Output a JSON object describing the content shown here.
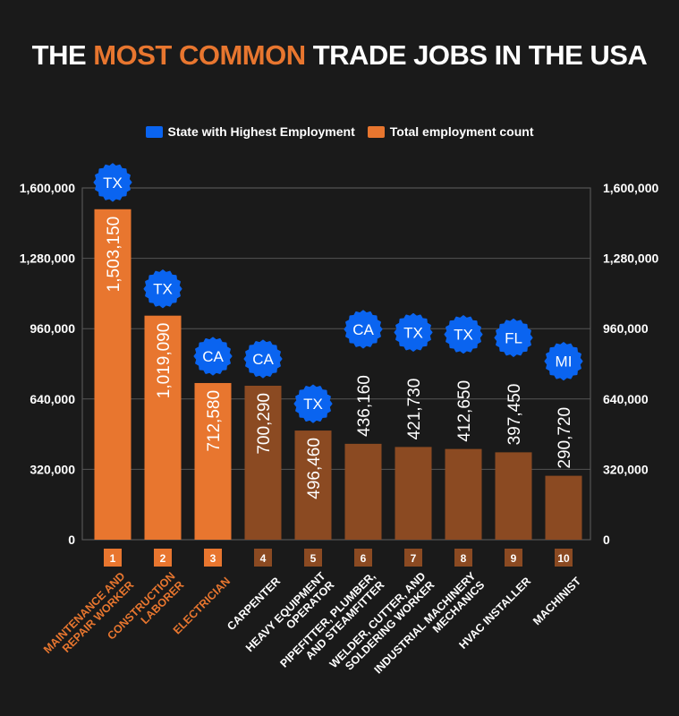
{
  "title": {
    "part1": "THE ",
    "highlight": "MOST COMMON",
    "part2": " TRADE JOBS IN THE USA"
  },
  "colors": {
    "background": "#1a1a1a",
    "highlight_orange": "#E8762F",
    "other_brown": "#8B4A22",
    "state_blue": "#0A64F0",
    "grid": "#555555"
  },
  "chart_data": {
    "type": "bar",
    "title": "THE MOST COMMON TRADE JOBS IN THE USA",
    "legend": {
      "position": "top",
      "entries": [
        {
          "label": "State with Highest Employment",
          "color": "#0A64F0"
        },
        {
          "label": "Total employment count",
          "color": "#E8762F"
        }
      ]
    },
    "ylim": [
      0,
      1600000
    ],
    "yticks": [
      "0",
      "320,000",
      "640,000",
      "960,000",
      "1,280,000",
      "1,600,000"
    ],
    "ytick_values": [
      0,
      320000,
      640000,
      960000,
      1280000,
      1600000
    ],
    "grid": true,
    "ranks": [
      "1",
      "2",
      "3",
      "4",
      "5",
      "6",
      "7",
      "8",
      "9",
      "10"
    ],
    "categories": [
      [
        "MAINTENANCE AND",
        "REPAIR WORKER"
      ],
      [
        "CONSTRUCTION",
        "LABORER"
      ],
      [
        "ELECTRICIAN"
      ],
      [
        "CARPENTER"
      ],
      [
        "HEAVY EQUIPMENT",
        "OPERATOR"
      ],
      [
        "PIPEFITTER, PLUMBER,",
        "AND STEAMFITTER"
      ],
      [
        "WELDER, CUTTER, AND",
        "SOLDERING WORKER"
      ],
      [
        "INDUSTRIAL MACHINERY",
        "MECHANICS"
      ],
      [
        "HVAC INSTALLER"
      ],
      [
        "MACHINIST"
      ]
    ],
    "values": [
      1503150,
      1019090,
      712580,
      700290,
      496460,
      436160,
      421730,
      412650,
      397450,
      290720
    ],
    "value_labels": [
      "1,503,150",
      "1,019,090",
      "712,580",
      "700,290",
      "496,460",
      "436,160",
      "421,730",
      "412,650",
      "397,450",
      "290,720"
    ],
    "states": [
      "TX",
      "TX",
      "CA",
      "CA",
      "TX",
      "CA",
      "TX",
      "TX",
      "FL",
      "MI"
    ],
    "highlighted": [
      true,
      true,
      true,
      false,
      false,
      false,
      false,
      false,
      false,
      false
    ]
  }
}
